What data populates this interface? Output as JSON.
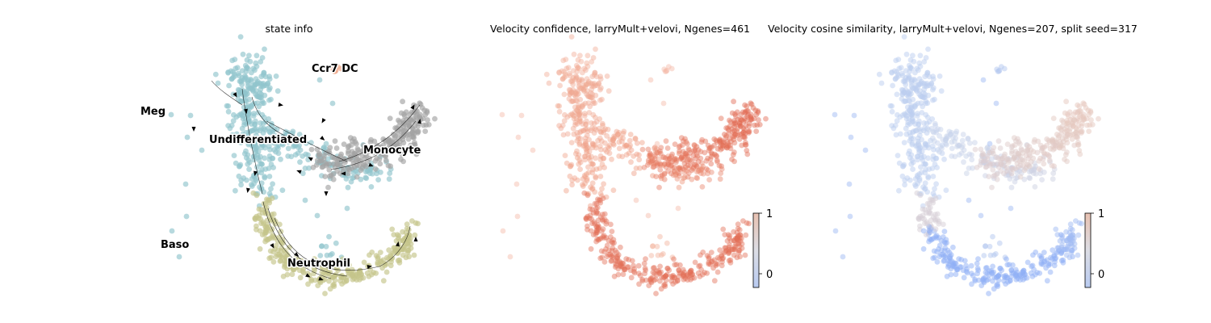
{
  "figure_type": "scatter (UMAP embedding, three panels)",
  "chart_data": [
    {
      "type": "scatter",
      "title": "state info",
      "xlabel": "",
      "ylabel": "",
      "grid": false,
      "axes_visible": false,
      "legend": "on data",
      "overlay": "velocity streamlines with arrowheads",
      "clusters": [
        {
          "name": "Ccr7 DC",
          "color": "#f0a888",
          "approx_center": [
            3.4,
            8.3
          ]
        },
        {
          "name": "Meg",
          "color": "#b8b8b8",
          "approx_center": [
            -0.6,
            6.6
          ]
        },
        {
          "name": "Undifferentiated",
          "color": "#90c4cc",
          "approx_center": [
            2.6,
            5.9
          ]
        },
        {
          "name": "Monocyte",
          "color": "#a3a3a3",
          "approx_center": [
            6.2,
            5.2
          ]
        },
        {
          "name": "Baso",
          "color": "#a8b8c8",
          "approx_center": [
            0.1,
            1.6
          ]
        },
        {
          "name": "Neutrophil",
          "color": "#c4c48a",
          "approx_center": [
            4.0,
            0.8
          ]
        }
      ]
    },
    {
      "type": "scatter",
      "title": "Velocity confidence, larryMult+velovi, Ngenes=461",
      "xlabel": "",
      "ylabel": "",
      "grid": false,
      "axes_visible": false,
      "colormap": "coolwarm",
      "colorbar": {
        "ticks": [
          "0",
          "1"
        ],
        "range": [
          -0.2,
          1
        ],
        "placement": "bottom-right"
      },
      "value_summary": [
        {
          "region": "Monocyte",
          "approx_value": 0.9
        },
        {
          "region": "Neutrophil",
          "approx_value": 0.9
        },
        {
          "region": "Undifferentiated",
          "approx_value": 0.55
        },
        {
          "region": "Meg",
          "approx_value": 0.3
        },
        {
          "region": "Baso",
          "approx_value": 0.3
        }
      ]
    },
    {
      "type": "scatter",
      "title": "Velocity cosine similarity, larryMult+velovi, Ngenes=207, split seed=317",
      "xlabel": "",
      "ylabel": "",
      "grid": false,
      "axes_visible": false,
      "colormap": "coolwarm",
      "colorbar": {
        "ticks": [
          "0",
          "1"
        ],
        "range": [
          -0.2,
          1
        ],
        "placement": "bottom-right"
      },
      "value_summary": [
        {
          "region": "Monocyte",
          "approx_value": 0.3
        },
        {
          "region": "Neutrophil",
          "approx_value": 0.0
        },
        {
          "region": "Undifferentiated",
          "approx_value": 0.15
        },
        {
          "region": "Meg",
          "approx_value": 0.05
        },
        {
          "region": "Baso",
          "approx_value": 0.05
        }
      ]
    }
  ],
  "colors": {
    "undifferentiated": "#90c4cc",
    "monocyte": "#a3a3a3",
    "neutrophil": "#c4c48a",
    "ccr7dc": "#f0a888",
    "conf_high": "#de5a42",
    "conf_mid": "#ee9a80",
    "conf_low": "#f6d0c2",
    "cos_low": "#8fb0f5",
    "cos_mid": "#c6d4ee",
    "cos_high": "#e6c8be",
    "cbar_top": "#e8c1b1",
    "cbar_mid": "#dcdde4",
    "cbar_bottom": "#b9cbf1"
  }
}
